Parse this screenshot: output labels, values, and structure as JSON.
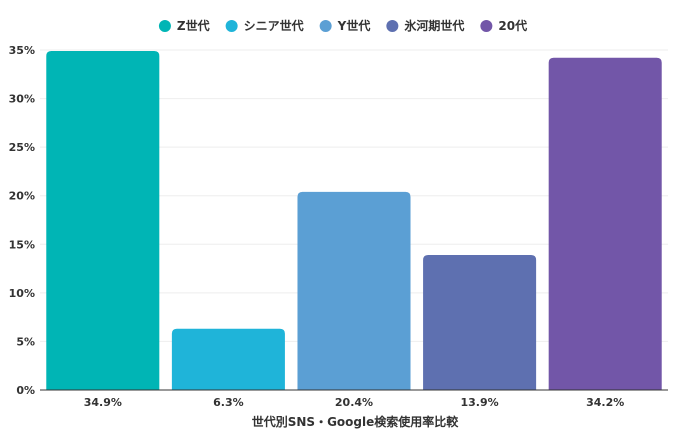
{
  "chart_data": {
    "type": "bar",
    "categories": [
      "34.9%",
      "6.3%",
      "20.4%",
      "13.9%",
      "34.2%"
    ],
    "series_names": [
      "Z世代",
      "シニア世代",
      "Y世代",
      "氷河期世代",
      "20代"
    ],
    "values": [
      34.9,
      6.3,
      20.4,
      13.9,
      34.2
    ],
    "colors": [
      "#00b5b5",
      "#1fb4d9",
      "#5b9fd4",
      "#5e70b0",
      "#7256a8"
    ],
    "title": "",
    "xlabel": "世代別SNS・Google検索使用率比較",
    "ylabel": "",
    "ylim": [
      0,
      35
    ],
    "yticks": [
      0,
      5,
      10,
      15,
      20,
      25,
      30,
      35
    ],
    "ytick_suffix": "%",
    "legend_position": "top-center",
    "grid": true
  }
}
